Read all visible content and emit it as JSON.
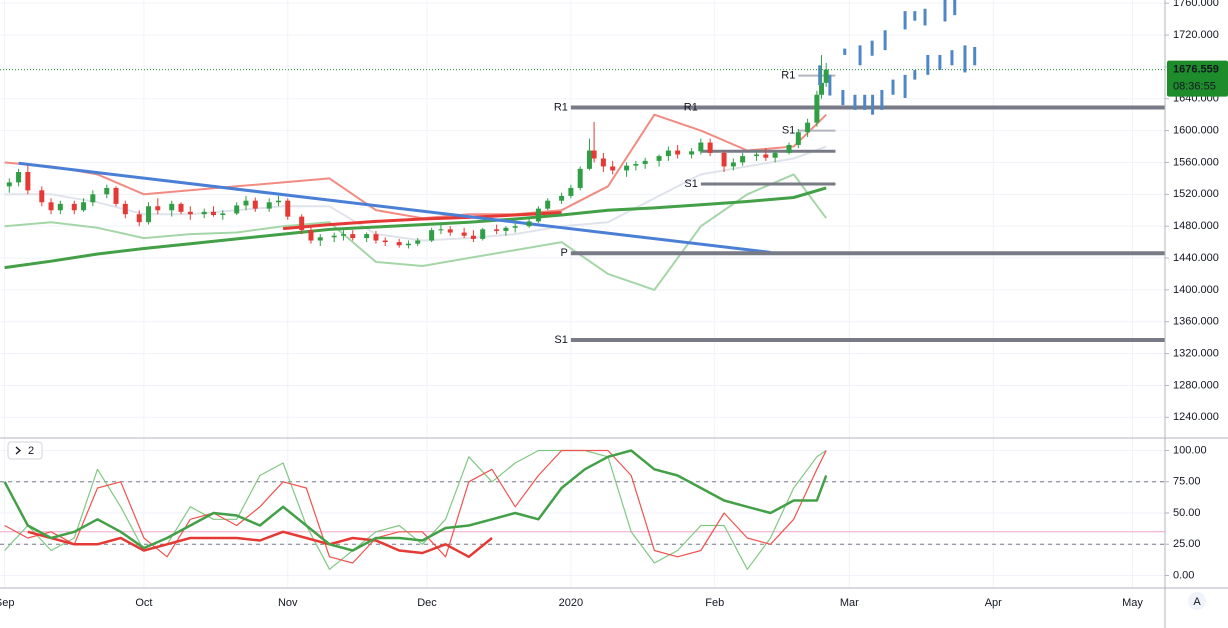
{
  "chart_data": [
    {
      "type": "candlestick",
      "up_color": "#2f9e44",
      "down_color": "#e53935",
      "x": [
        1,
        3,
        5,
        8,
        10,
        12,
        15,
        17,
        19,
        22,
        24,
        26,
        29,
        31,
        33,
        36,
        38,
        40,
        43,
        45,
        47,
        50,
        52,
        54,
        57,
        59,
        61,
        64,
        66,
        68,
        71,
        73,
        75,
        78,
        80,
        82,
        85,
        87,
        89,
        92,
        94,
        96,
        99,
        101,
        103,
        106,
        108,
        110,
        113,
        115,
        117,
        120,
        122,
        124,
        126,
        127,
        129,
        131,
        134,
        136,
        138,
        141,
        143,
        145,
        148,
        150,
        152,
        155,
        157,
        159,
        162,
        164,
        166,
        169,
        171,
        173,
        175,
        176,
        177
      ],
      "open": [
        1530,
        1535,
        1548,
        1525,
        1510,
        1500,
        1508,
        1500,
        1510,
        1520,
        1528,
        1508,
        1495,
        1485,
        1505,
        1500,
        1508,
        1498,
        1495,
        1498,
        1494,
        1496,
        1506,
        1512,
        1502,
        1510,
        1512,
        1492,
        1475,
        1462,
        1466,
        1468,
        1470,
        1465,
        1470,
        1462,
        1460,
        1456,
        1458,
        1462,
        1475,
        1476,
        1472,
        1468,
        1464,
        1476,
        1474,
        1478,
        1480,
        1486,
        1502,
        1512,
        1518,
        1528,
        1552,
        1575,
        1565,
        1555,
        1550,
        1556,
        1558,
        1562,
        1568,
        1575,
        1570,
        1574,
        1585,
        1572,
        1555,
        1560,
        1568,
        1570,
        1566,
        1572,
        1582,
        1598,
        1610,
        1645,
        1660
      ],
      "high": [
        1540,
        1552,
        1557,
        1530,
        1515,
        1512,
        1512,
        1515,
        1525,
        1532,
        1530,
        1512,
        1500,
        1510,
        1515,
        1512,
        1510,
        1505,
        1502,
        1505,
        1500,
        1510,
        1518,
        1516,
        1515,
        1518,
        1515,
        1495,
        1480,
        1470,
        1472,
        1475,
        1475,
        1472,
        1474,
        1466,
        1464,
        1462,
        1465,
        1478,
        1482,
        1480,
        1478,
        1475,
        1478,
        1482,
        1480,
        1484,
        1490,
        1505,
        1515,
        1522,
        1532,
        1555,
        1590,
        1611,
        1572,
        1562,
        1560,
        1562,
        1566,
        1570,
        1580,
        1582,
        1578,
        1590,
        1590,
        1575,
        1565,
        1572,
        1575,
        1578,
        1575,
        1585,
        1602,
        1615,
        1650,
        1695,
        1685
      ],
      "low": [
        1522,
        1530,
        1520,
        1505,
        1495,
        1495,
        1495,
        1498,
        1505,
        1515,
        1505,
        1490,
        1480,
        1482,
        1495,
        1492,
        1495,
        1488,
        1490,
        1492,
        1488,
        1494,
        1500,
        1498,
        1498,
        1505,
        1488,
        1470,
        1458,
        1455,
        1460,
        1462,
        1462,
        1460,
        1458,
        1455,
        1453,
        1452,
        1455,
        1460,
        1470,
        1468,
        1465,
        1460,
        1462,
        1470,
        1468,
        1472,
        1478,
        1484,
        1500,
        1508,
        1515,
        1525,
        1550,
        1560,
        1548,
        1545,
        1542,
        1550,
        1552,
        1555,
        1562,
        1565,
        1565,
        1570,
        1568,
        1548,
        1550,
        1556,
        1562,
        1562,
        1560,
        1570,
        1578,
        1592,
        1605,
        1640,
        1655
      ],
      "close": [
        1535,
        1548,
        1525,
        1510,
        1500,
        1508,
        1500,
        1510,
        1520,
        1528,
        1508,
        1495,
        1485,
        1505,
        1500,
        1508,
        1498,
        1495,
        1498,
        1494,
        1496,
        1506,
        1512,
        1502,
        1510,
        1512,
        1492,
        1475,
        1462,
        1466,
        1468,
        1470,
        1465,
        1470,
        1462,
        1460,
        1456,
        1458,
        1462,
        1475,
        1476,
        1472,
        1468,
        1464,
        1476,
        1474,
        1478,
        1480,
        1486,
        1502,
        1512,
        1518,
        1528,
        1552,
        1575,
        1565,
        1555,
        1550,
        1556,
        1558,
        1562,
        1568,
        1575,
        1570,
        1574,
        1585,
        1572,
        1555,
        1560,
        1568,
        1570,
        1566,
        1572,
        1582,
        1598,
        1610,
        1645,
        1660,
        1676.559
      ],
      "lines": [
        {
          "color": "#f28b82",
          "width": 2,
          "x": [
            0,
            10,
            20,
            30,
            40,
            50,
            60,
            70,
            80,
            90,
            100,
            110,
            120,
            130,
            140,
            150,
            160,
            170,
            177
          ],
          "values": [
            1560,
            1555,
            1545,
            1520,
            1525,
            1530,
            1535,
            1540,
            1500,
            1490,
            1495,
            1495,
            1500,
            1530,
            1620,
            1600,
            1575,
            1580,
            1620
          ]
        },
        {
          "color": "#a5d6a7",
          "width": 2,
          "x": [
            0,
            10,
            20,
            30,
            40,
            50,
            60,
            70,
            80,
            90,
            100,
            110,
            120,
            130,
            140,
            150,
            160,
            170,
            177
          ],
          "values": [
            1480,
            1485,
            1478,
            1465,
            1470,
            1472,
            1480,
            1485,
            1435,
            1430,
            1440,
            1450,
            1460,
            1420,
            1400,
            1480,
            1520,
            1545,
            1490
          ]
        },
        {
          "color": "#e0e3eb",
          "width": 2,
          "x": [
            0,
            10,
            20,
            30,
            40,
            50,
            60,
            70,
            80,
            90,
            100,
            110,
            120,
            130,
            140,
            150,
            160,
            170,
            177
          ],
          "values": [
            1520,
            1520,
            1510,
            1495,
            1495,
            1500,
            1505,
            1505,
            1470,
            1462,
            1465,
            1470,
            1480,
            1485,
            1515,
            1545,
            1555,
            1565,
            1580
          ]
        },
        {
          "color": "#e53935",
          "width": 3,
          "x": [
            0,
            10,
            20,
            30,
            40,
            50,
            60,
            70,
            80,
            90,
            100,
            110,
            120,
            130,
            140,
            150,
            160,
            170,
            177
          ],
          "values": [
            null,
            null,
            null,
            null,
            null,
            null,
            1477,
            1482,
            1486,
            1489,
            1491,
            1494,
            1497,
            null,
            null,
            null,
            null,
            null,
            null
          ]
        },
        {
          "color": "#43a047",
          "width": 3,
          "x": [
            0,
            10,
            20,
            30,
            40,
            50,
            60,
            70,
            80,
            90,
            100,
            110,
            120,
            130,
            140,
            150,
            160,
            170,
            177
          ],
          "values": [
            1428,
            1436,
            1445,
            1452,
            1458,
            1464,
            1470,
            1476,
            1479,
            1482,
            1485,
            1489,
            1494,
            1500,
            1503,
            1507,
            1511,
            1516,
            1528
          ]
        },
        {
          "color": "#4a7fd6",
          "width": 3,
          "x": [
            3,
            165
          ],
          "values": [
            1559,
            1447
          ]
        }
      ],
      "levels": [
        {
          "label": "R1",
          "value": 1629,
          "x": [
            122,
            250
          ],
          "color": "#787b86",
          "width": 4
        },
        {
          "label": "P",
          "value": 1446,
          "x": [
            122,
            250
          ],
          "color": "#787b86",
          "width": 4
        },
        {
          "label": "S1",
          "value": 1337,
          "x": [
            122,
            250
          ],
          "color": "#787b86",
          "width": 4
        },
        {
          "label": "R1",
          "value": 1629,
          "x": [
            150,
            179
          ],
          "color": "#787b86",
          "width": 3
        },
        {
          "value": 1574,
          "x": [
            150,
            179
          ],
          "color": "#787b86",
          "width": 3
        },
        {
          "label": "S1",
          "value": 1533,
          "x": [
            150,
            179
          ],
          "color": "#787b86",
          "width": 3
        },
        {
          "label": "R1",
          "value": 1669,
          "x": [
            171,
            179
          ],
          "color": "#b2b5be",
          "width": 2
        },
        {
          "label": "S1",
          "value": 1600,
          "x": [
            171,
            179
          ],
          "color": "#b2b5be",
          "width": 2
        }
      ],
      "projection": {
        "color": "#4f86c6",
        "x": [
          181,
          184.3,
          186.9,
          189.7,
          194,
          196.1,
          198.3,
          202.6,
          204.7,
          175.6,
          177.8,
          180.6,
          183.2,
          185.3,
          187,
          189,
          191.4,
          194,
          196.1,
          198.9,
          201.5,
          204.1,
          206.9,
          209
        ],
        "high": [
          1703,
          1707,
          1713,
          1726,
          1750,
          1750,
          1753,
          1765,
          1765,
          1682,
          1670,
          1651,
          1645,
          1645,
          1645,
          1651,
          1664,
          1670,
          1676,
          1695,
          1695,
          1701,
          1707,
          1705
        ],
        "low": [
          1695,
          1682,
          1694,
          1701,
          1727,
          1738,
          1732,
          1737,
          1745,
          1657,
          1644,
          1632,
          1626,
          1626,
          1620,
          1626,
          1645,
          1641,
          1664,
          1670,
          1676,
          1682,
          1673,
          1682
        ]
      },
      "last_price": {
        "value": 1676.559,
        "countdown": "08:36:55",
        "color": "#1e8c2a"
      },
      "xlim": [
        -1,
        250
      ],
      "ylim": [
        1214,
        1764
      ],
      "xticks": [
        {
          "value": 0,
          "label": "Sep"
        },
        {
          "value": 30,
          "label": "Oct"
        },
        {
          "value": 61,
          "label": "Nov"
        },
        {
          "value": 91,
          "label": "Dec"
        },
        {
          "value": 122,
          "label": "2020"
        },
        {
          "value": 153,
          "label": "Feb"
        },
        {
          "value": 182,
          "label": "Mar"
        },
        {
          "value": 213,
          "label": "Apr"
        },
        {
          "value": 243,
          "label": "May"
        }
      ],
      "yticks": [
        {
          "value": 1240,
          "label": "1240.000"
        },
        {
          "value": 1280,
          "label": "1280.000"
        },
        {
          "value": 1320,
          "label": "1320.000"
        },
        {
          "value": 1360,
          "label": "1360.000"
        },
        {
          "value": 1400,
          "label": "1400.000"
        },
        {
          "value": 1440,
          "label": "1440.000"
        },
        {
          "value": 1480,
          "label": "1480.000"
        },
        {
          "value": 1520,
          "label": "1520.000"
        },
        {
          "value": 1560,
          "label": "1560.000"
        },
        {
          "value": 1600,
          "label": "1600.000"
        },
        {
          "value": 1640,
          "label": "1640.000"
        },
        {
          "value": 1680,
          "label": "1680.000"
        },
        {
          "value": 1720,
          "label": "1720.000"
        },
        {
          "value": 1760,
          "label": "1760.000"
        }
      ],
      "grid": true
    },
    {
      "type": "line",
      "pane_label": "2",
      "x": [
        0,
        5,
        10,
        15,
        20,
        25,
        30,
        35,
        40,
        45,
        50,
        55,
        60,
        65,
        70,
        75,
        80,
        85,
        90,
        95,
        100,
        105,
        110,
        115,
        120,
        125,
        130,
        135,
        140,
        145,
        150,
        155,
        160,
        165,
        170,
        175,
        177
      ],
      "series": [
        {
          "color": "#81c784",
          "width": 1.2,
          "values": [
            20,
            40,
            20,
            30,
            85,
            55,
            20,
            25,
            55,
            45,
            45,
            80,
            90,
            40,
            5,
            20,
            35,
            40,
            25,
            45,
            95,
            75,
            90,
            100,
            100,
            100,
            95,
            35,
            10,
            20,
            40,
            40,
            5,
            30,
            70,
            95,
            100
          ]
        },
        {
          "color": "#ef5350",
          "width": 1.2,
          "values": [
            40,
            30,
            35,
            25,
            70,
            75,
            30,
            15,
            45,
            50,
            40,
            55,
            75,
            70,
            15,
            10,
            30,
            35,
            35,
            15,
            75,
            85,
            55,
            80,
            100,
            100,
            100,
            80,
            20,
            15,
            20,
            50,
            30,
            25,
            45,
            85,
            100
          ]
        },
        {
          "color": "#e53935",
          "width": 2.5,
          "values": [
            null,
            35,
            30,
            25,
            25,
            30,
            20,
            25,
            30,
            30,
            30,
            28,
            35,
            30,
            25,
            30,
            28,
            20,
            18,
            25,
            15,
            30,
            null,
            null,
            null,
            null,
            null,
            null,
            null,
            null,
            null,
            null,
            null,
            null,
            null,
            null,
            null
          ]
        },
        {
          "color": "#43a047",
          "width": 2.5,
          "values": [
            75,
            40,
            30,
            35,
            45,
            35,
            22,
            30,
            40,
            50,
            48,
            40,
            55,
            40,
            25,
            20,
            30,
            30,
            28,
            38,
            40,
            45,
            50,
            45,
            70,
            85,
            95,
            100,
            85,
            80,
            70,
            60,
            55,
            50,
            60,
            60,
            80
          ]
        }
      ],
      "hlines": [
        {
          "value": 75,
          "color": "#787b86",
          "dash": true
        },
        {
          "value": 25,
          "color": "#787b86",
          "dash": true
        },
        {
          "value": 35,
          "color": "#f3a6c8",
          "dash": false
        }
      ],
      "ylim": [
        -10,
        110
      ],
      "yticks": [
        {
          "value": 0,
          "label": "0.00"
        },
        {
          "value": 25,
          "label": "25.00"
        },
        {
          "value": 50,
          "label": "50.00"
        },
        {
          "value": 75,
          "label": "75.00"
        },
        {
          "value": 100,
          "label": "100.00"
        }
      ],
      "grid": true
    }
  ],
  "auto_button": "A"
}
